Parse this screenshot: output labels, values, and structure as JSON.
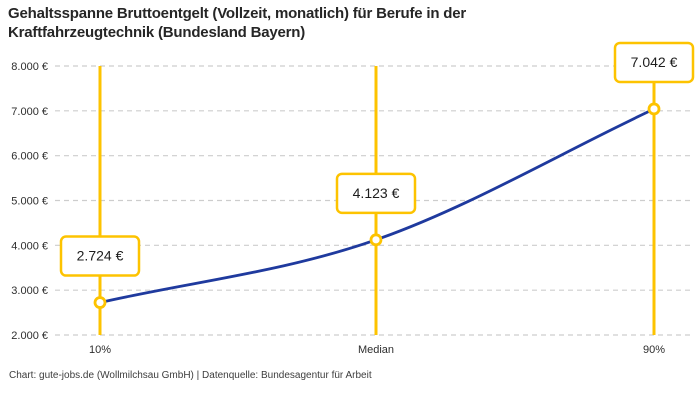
{
  "header": {
    "title": "Gehaltsspanne Bruttoentgelt (Vollzeit, monatlich) für Berufe in der Kraftfahrzeugtechnik (Bundesland Bayern)"
  },
  "footer": {
    "credit": "Chart: gute-jobs.de (Wollmilchsau GmbH) | Datenquelle: Bundesagentur für Arbeit"
  },
  "chart_data": {
    "type": "line",
    "title": "Gehaltsspanne Bruttoentgelt (Vollzeit, monatlich) für Berufe in der Kraftfahrzeugtechnik (Bundesland Bayern)",
    "categories": [
      "10%",
      "Median",
      "90%"
    ],
    "values": [
      2724,
      4123,
      7042
    ],
    "value_labels": [
      "2.724 €",
      "4.123 €",
      "7.042 €"
    ],
    "y_ticks": [
      2000,
      3000,
      4000,
      5000,
      6000,
      7000,
      8000
    ],
    "y_tick_labels": [
      "2.000 €",
      "3.000 €",
      "4.000 €",
      "5.000 €",
      "6.000 €",
      "7.000 €",
      "8.000 €"
    ],
    "ylim": [
      2000,
      8000
    ],
    "xlabel": "",
    "ylabel": "",
    "grid": "horizontal-dashed",
    "legend": "none",
    "colors": {
      "curve": "#1f3a9e",
      "marker": "#fdc300",
      "marker_fill": "#ffffff",
      "grid": "#cdcdcd",
      "axis_text": "#2e2e2e",
      "label_text": "#1d1d1d",
      "label_box_bg": "#ffffff",
      "label_box_border": "#fdc300",
      "background": "#ffffff"
    }
  }
}
